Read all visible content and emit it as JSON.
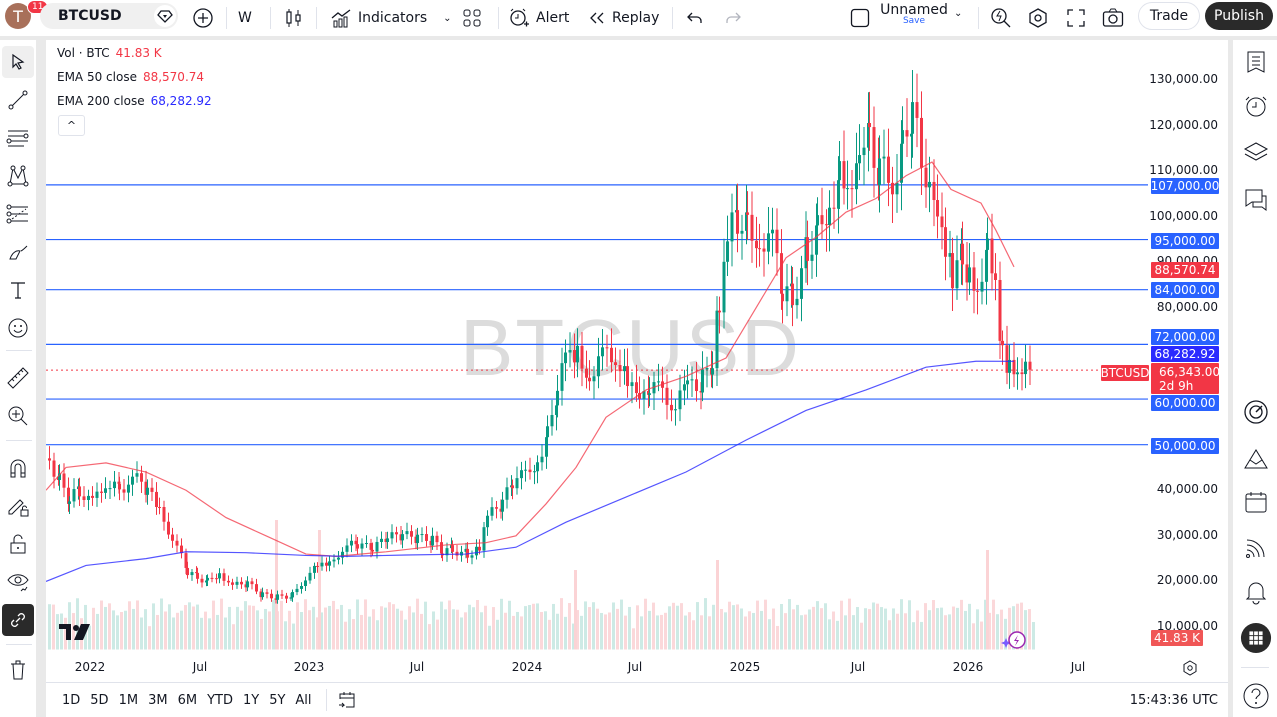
{
  "topbar": {
    "avatar_letter": "T",
    "notifications": "11",
    "symbol": "BTCUSD",
    "interval": "W",
    "indicators_label": "Indicators",
    "alert_label": "Alert",
    "replay_label": "Replay",
    "layout_name": "Unnamed",
    "save_label": "Save",
    "trade_label": "Trade",
    "publish_label": "Publish"
  },
  "legend": {
    "vol_label": "Vol · BTC",
    "vol_value": "41.83 K",
    "ema50_label": "EMA 50 close",
    "ema50_value": "88,570.74",
    "ema200_label": "EMA 200 close",
    "ema200_value": "68,282.92",
    "collapse_icon": "^"
  },
  "watermark": "BTCUSD",
  "price_axis": {
    "ticks": [
      "130,000.00",
      "120,000.00",
      "110,000.00",
      "100,000.00",
      "90,000.00",
      "80,000.00",
      "40,000.00",
      "30,000.00",
      "20,000.00",
      "10,000.00"
    ],
    "horizontal_levels": [
      "107,000.00",
      "95,000.00",
      "84,000.00",
      "72,000.00",
      "60,000.00",
      "50,000.00"
    ],
    "ema50_tag": "88,570.74",
    "ema200_tag": "68,282.92",
    "last_price": "66,343.00",
    "countdown": "2d 9h",
    "symbol_tag": "BTCUSD",
    "volume_tag": "41.83 K"
  },
  "time_axis": {
    "labels": [
      "2022",
      "Jul",
      "2023",
      "Jul",
      "2024",
      "Jul",
      "2025",
      "Jul",
      "2026",
      "Jul"
    ]
  },
  "bottom": {
    "ranges": [
      "1D",
      "5D",
      "1M",
      "3M",
      "6M",
      "YTD",
      "1Y",
      "5Y",
      "All"
    ],
    "clock": "15:43:36 UTC"
  },
  "colors": {
    "up": "#089981",
    "down": "#f23645",
    "level": "#2962ff",
    "ema50": "#f23645",
    "ema200": "#2a2aff"
  },
  "chart_data": {
    "type": "candlestick",
    "title": "BTCUSD Weekly",
    "ylim": [
      10000,
      130000
    ],
    "levels": [
      107000,
      95000,
      84000,
      72000,
      60000,
      50000
    ],
    "ema50_last": 88570.74,
    "ema200_last": 68282.92,
    "last_price": 66343,
    "x_range": [
      "2021-12",
      "2026-03"
    ]
  }
}
